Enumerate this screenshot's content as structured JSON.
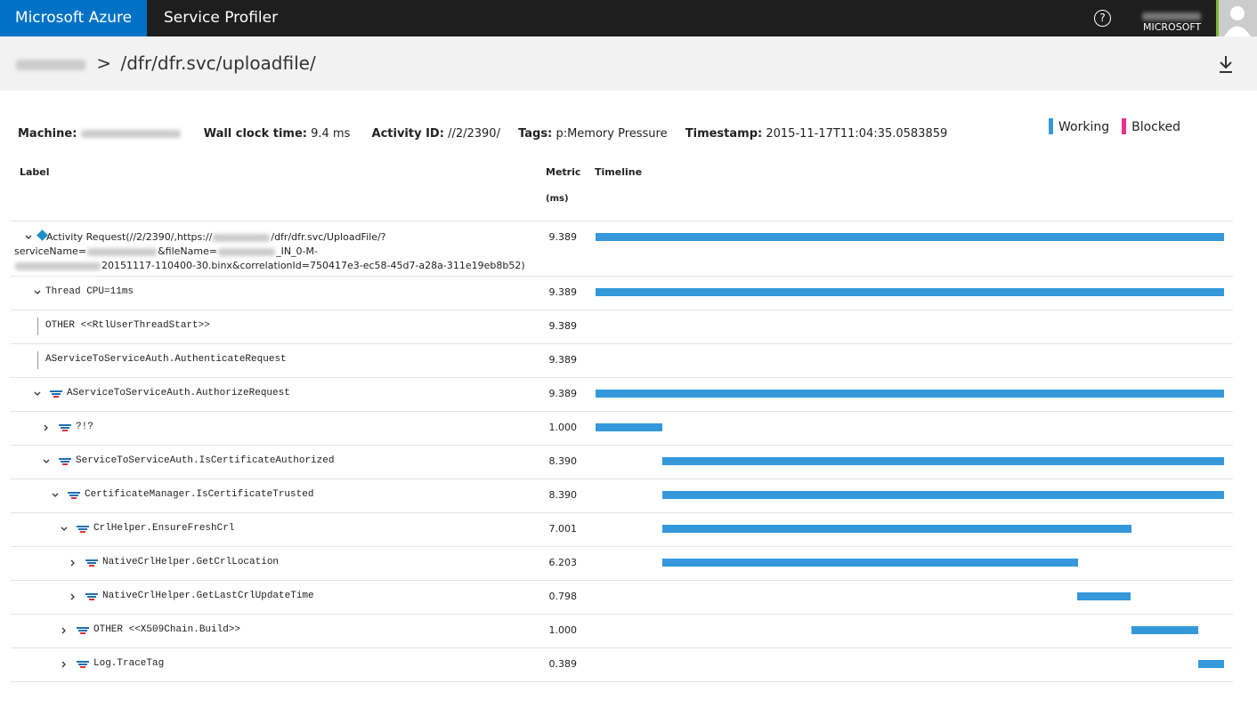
{
  "topbar": {
    "brand": "Microsoft Azure",
    "app": "Service Profiler",
    "help": "?",
    "org": "MICROSOFT"
  },
  "breadcrumb": {
    "separator": ">",
    "path": "/dfr/dfr.svc/uploadfile/"
  },
  "info": {
    "machine_label": "Machine:",
    "wall_label": "Wall clock time:",
    "wall_value": "9.4 ms",
    "activity_label": "Activity ID:",
    "activity_value": "//2/2390/",
    "tags_label": "Tags:",
    "tags_value": "p:Memory Pressure",
    "timestamp_label": "Timestamp:",
    "timestamp_value": "2015-11-17T11:04:35.0583859"
  },
  "legend": [
    {
      "name": "Working",
      "color": "#3498db"
    },
    {
      "name": "Blocked",
      "color": "#e8318c"
    }
  ],
  "columns": {
    "label": "Label",
    "metric": "Metric",
    "metric_unit": "(ms)",
    "timeline": "Timeline"
  },
  "timeline_range": [
    0,
    9.389
  ],
  "rows": [
    {
      "label_parts": [
        "Activity Request(//2/2390/,https://",
        "/dfr/dfr.svc/UploadFile/?",
        "serviceName=",
        "&fileName=",
        "_IN_0-M-",
        "20151117-110400-30.binx&correlationId=750417e3-ec58-45d7-a28a-311e19eb8b52)"
      ],
      "metric": "9.389",
      "start": 0,
      "depth": 0,
      "expander": "expanded",
      "icon": "diamond"
    },
    {
      "label": "Thread CPU=11ms",
      "metric": "9.389",
      "start": 0,
      "depth": 1,
      "expander": "expanded",
      "icon": "none"
    },
    {
      "label": "OTHER <<RtlUserThreadStart>>",
      "metric": "9.389",
      "depth": 1,
      "expander": "leaf",
      "icon": "none"
    },
    {
      "label": "AServiceToServiceAuth.AuthenticateRequest",
      "metric": "9.389",
      "depth": 1,
      "expander": "leaf",
      "icon": "none"
    },
    {
      "label": "AServiceToServiceAuth.AuthorizeRequest",
      "metric": "9.389",
      "start": 0,
      "depth": 1,
      "expander": "expanded",
      "icon": "stack"
    },
    {
      "label": "?!?",
      "metric": "1.000",
      "start": 0,
      "depth": 2,
      "expander": "collapsed",
      "icon": "stack"
    },
    {
      "label": "ServiceToServiceAuth.IsCertificateAuthorized",
      "metric": "8.390",
      "start": 1.0,
      "depth": 2,
      "expander": "expanded",
      "icon": "stack"
    },
    {
      "label": "CertificateManager.IsCertificateTrusted",
      "metric": "8.390",
      "start": 1.0,
      "depth": 3,
      "expander": "expanded",
      "icon": "stack"
    },
    {
      "label": "CrlHelper.EnsureFreshCrl",
      "metric": "7.001",
      "start": 1.0,
      "depth": 4,
      "expander": "expanded",
      "icon": "stack"
    },
    {
      "label": "NativeCrlHelper.GetCrlLocation",
      "metric": "6.203",
      "start": 1.0,
      "depth": 5,
      "expander": "collapsed",
      "icon": "stack"
    },
    {
      "label": "NativeCrlHelper.GetLastCrlUpdateTime",
      "metric": "0.798",
      "start": 7.2,
      "depth": 5,
      "expander": "collapsed",
      "icon": "stack"
    },
    {
      "label": "OTHER <<X509Chain.Build>>",
      "metric": "1.000",
      "start": 8.0,
      "depth": 4,
      "expander": "collapsed",
      "icon": "stack"
    },
    {
      "label": "Log.TraceTag",
      "metric": "0.389",
      "start": 9.0,
      "depth": 4,
      "expander": "collapsed",
      "icon": "stack"
    }
  ]
}
